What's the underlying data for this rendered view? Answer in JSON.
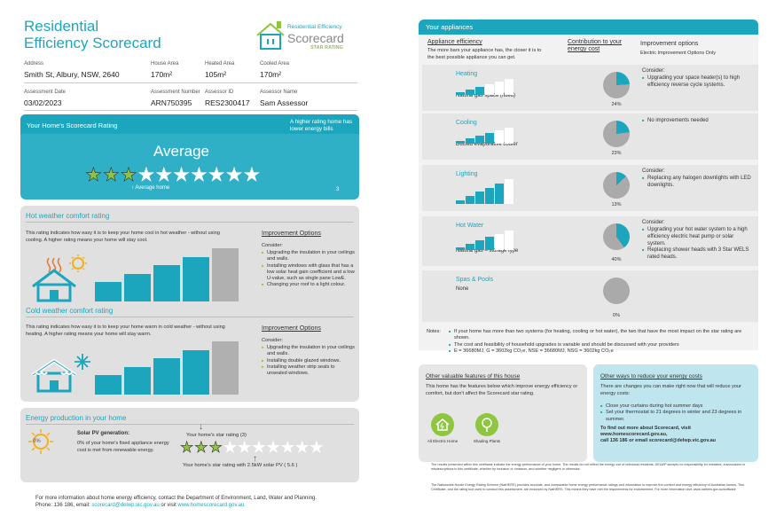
{
  "page1": {
    "title_line1": "Residential",
    "title_line2": "Efficiency Scorecard",
    "logo": {
      "top": "Residential Efficiency",
      "main": "Scorecard",
      "sub": "STAR RATING"
    },
    "fields": [
      {
        "label": "Address",
        "value": "Smith St, Albury, NSW, 2640"
      },
      {
        "label": "House Area",
        "value": "170m²"
      },
      {
        "label": "Heated Area",
        "value": "105m²"
      },
      {
        "label": "Cooled Area",
        "value": "170m²"
      },
      {
        "label": "Assessment Date",
        "value": "03/02/2023"
      },
      {
        "label": "Assessment Number",
        "value": "ARN750395"
      },
      {
        "label": "Assessor ID",
        "value": "RES2300417"
      },
      {
        "label": "Assessor Name",
        "value": "Sam Assessor"
      }
    ],
    "rating": {
      "title": "Your Home's Scorecard Rating",
      "note": "A higher rating home has lower energy bills",
      "value": "Average",
      "stars_total": 10,
      "stars_filled": 3,
      "average_label": "Average home",
      "number": "3"
    },
    "hot": {
      "title": "Hot weather comfort rating",
      "desc": "This rating indicates how easy it is to keep your home cool in hot weather - without using cooling. A higher rating means your home will stay cool.",
      "bar_values": [
        1,
        2,
        3,
        4,
        5
      ],
      "selected_level": 5
    },
    "cold": {
      "title": "Cold weather comfort rating",
      "desc": "This rating indicates how easy it is to keep your home warm in cold weather - without using heating. A higher rating means your home will stay warm.",
      "bar_values": [
        1,
        2,
        3,
        4,
        5
      ],
      "selected_level": 5
    },
    "improve_hot": {
      "title": "Improvement Options",
      "consider": "Consider:",
      "items": [
        "Upgrading the insulation in your ceilings and walls.",
        "Installing windows with glass that has a low solar heat gain coefficient and a low U-value, such as single pane LowE.",
        "Changing your roof to a light colour."
      ]
    },
    "improve_cold": {
      "title": "Improvement Options",
      "consider": "Consider:",
      "items": [
        "Upgrading the insulation in your ceilings and walls.",
        "Installing double glazed windows.",
        "Installing weather strip seals to unsealed windows."
      ]
    },
    "energy": {
      "title": "Energy production in your home",
      "pv_title": "Solar PV generation:",
      "pv_percent": "0%",
      "pv_desc": "0% of your home's fixed appliance energy cost is met from renewable energy.",
      "star_rating_label": "Your home's star rating (3)",
      "pv_label": "Your home's star rating with 2.5kW solar PV ( 5.6 )",
      "stars_filled": 3
    },
    "footer_line1": "For more information about home energy efficiency, contact the Department of Environment, Land, Water and Planning.",
    "footer_line2_a": "Phone: 136 186, email: ",
    "footer_email": "scorecard@delwp.vic.gov.au",
    "footer_line2_b": " or visit ",
    "footer_url": "www.homescorecard.gov.au"
  },
  "page2": {
    "header": "Your appliances",
    "col1_title": "Appliance efficiency",
    "col1_desc": "The more bars your appliance has, the closer it is to the best possible appliance you can get.",
    "col2_title": "Contribution to your energy cost",
    "col3_title": "Improvement options",
    "col3_sub": "Electric Improvement Options Only",
    "appliances": [
      {
        "name": "Heating",
        "type": "Natural gas space (flued)",
        "bars": 3,
        "percent_value": 24,
        "percent": "24%",
        "consider": "Consider:",
        "items": [
          "Upgrading your space heater(s) to high efficiency reverse cycle systems."
        ]
      },
      {
        "name": "Cooling",
        "type": "Ducted evaporative cooler",
        "bars": 4,
        "percent_value": 23,
        "percent": "23%",
        "consider": "",
        "items": [
          "No improvements needed"
        ]
      },
      {
        "name": "Lighting",
        "type": "",
        "bars": 5,
        "percent_value": 13,
        "percent": "13%",
        "consider": "Consider:",
        "items": [
          "Replacing any halogen downlights with LED downlights."
        ]
      },
      {
        "name": "Hot Water",
        "type": "Natural gas – storage type",
        "bars": 4,
        "percent_value": 40,
        "percent": "40%",
        "consider": "Consider:",
        "items": [
          "Upgrading your hot water system to a high efficiency electric heat pump or solar system.",
          "Replacing shower heads with 3 Star WELS rated heads."
        ]
      },
      {
        "name": "Spas & Pools",
        "type": "None",
        "bars": 0,
        "percent_value": 0,
        "percent": "0%",
        "consider": "",
        "items": []
      }
    ],
    "notes_label": "Notes:",
    "notes": [
      "If your home has more than two systems (for heating, cooling or hot water), the two that have the most impact on the star rating are shown.",
      "The cost and feasibility of household upgrades is variable and should be discussed with your providers",
      "E = 36680MJ, G = 3602kg CO₂e, NSE = 36680MJ, NSG = 3602kg CO₂e"
    ],
    "features": {
      "title": "Other valuable features of this house",
      "desc": "This home has the features below which improve energy efficiency or comfort, but don't affect the Scorecard star rating.",
      "items": [
        "All Electric Home",
        "Shading Plants"
      ]
    },
    "ways": {
      "title": "Other ways to reduce your energy costs",
      "desc": "There are changes you can make right now that will reduce your energy costs:",
      "items": [
        "Close your curtains during hot summer days",
        "Set your thermostat to 21 degrees in winter and 23 degrees in summer."
      ],
      "find_line1": "To find out more about Scorecard, visit",
      "find_line2": "www.homescorecard.gov.au,",
      "find_line3": "call 136 186 or email scorecard@delwp.vic.gov.au"
    },
    "fine_print1": "The results presented within this certificate indicate the energy performance of your home. The results do not reflect the energy use of individual residents. DELWP accepts no responsibility for mistakes, inaccuracies or misdescriptions in this certificate, whether by inclusion or omission, and whether negligent or otherwise.",
    "fine_print2": "The Nationwide House Energy Rating Scheme (NatHERS) provides accurate, and comparable home energy performance ratings and information to improve the comfort and energy efficiency of Australian homes. This Certificate, and the rating tool used to conduct this assessment, are endorsed by NatHERS. This means they have met the requirements for endorsement. For more information visit: www.nathers.gov.au/software"
  },
  "colors": {
    "teal": "#1ba6bd",
    "grey": "#b0b0b0",
    "green": "#8ec63f",
    "star_on": "#8ec63f",
    "star_off": "#ffffff"
  }
}
